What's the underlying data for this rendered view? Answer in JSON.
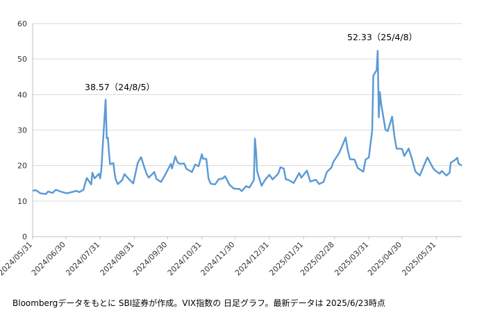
{
  "chart_data": {
    "type": "line",
    "annotations": [
      "38.57（24/8/5）",
      "52.33（25/4/8）"
    ],
    "caption": "Bloombergデータをもとに SBI証券が作成。VIX指数の 日足グラフ。最新データは 2025/6/23時点",
    "xlim": [
      "2024/05/31",
      "2025/06/23"
    ],
    "xticks": [
      "2024/05/31",
      "2024/06/30",
      "2024/07/31",
      "2024/08/31",
      "2024/09/30",
      "2024/10/31",
      "2024/11/30",
      "2024/12/31",
      "2025/01/31",
      "2025/02/28",
      "2025/03/31",
      "2025/04/30",
      "2025/05/31"
    ],
    "ylim": [
      0,
      60
    ],
    "yticks": [
      0,
      10,
      20,
      30,
      40,
      50,
      60
    ],
    "grid": true,
    "x": [
      "2024/05/31",
      "2024/06/03",
      "2024/06/07",
      "2024/06/12",
      "2024/06/14",
      "2024/06/18",
      "2024/06/21",
      "2024/06/26",
      "2024/07/01",
      "2024/07/05",
      "2024/07/10",
      "2024/07/12",
      "2024/07/16",
      "2024/07/17",
      "2024/07/19",
      "2024/07/23",
      "2024/07/24",
      "2024/07/26",
      "2024/07/30",
      "2024/07/31",
      "2024/08/01",
      "2024/08/02",
      "2024/08/05",
      "2024/08/06",
      "2024/08/07",
      "2024/08/08",
      "2024/08/09",
      "2024/08/12",
      "2024/08/13",
      "2024/08/14",
      "2024/08/16",
      "2024/08/20",
      "2024/08/22",
      "2024/08/26",
      "2024/08/30",
      "2024/09/03",
      "2024/09/04",
      "2024/09/06",
      "2024/09/09",
      "2024/09/11",
      "2024/09/13",
      "2024/09/18",
      "2024/09/20",
      "2024/09/24",
      "2024/09/27",
      "2024/10/01",
      "2024/10/03",
      "2024/10/04",
      "2024/10/07",
      "2024/10/09",
      "2024/10/11",
      "2024/10/15",
      "2024/10/17",
      "2024/10/22",
      "2024/10/25",
      "2024/10/28",
      "2024/10/31",
      "2024/11/01",
      "2024/11/04",
      "2024/11/06",
      "2024/11/08",
      "2024/11/12",
      "2024/11/15",
      "2024/11/19",
      "2024/11/21",
      "2024/11/25",
      "2024/11/29",
      "2024/12/04",
      "2024/12/06",
      "2024/12/10",
      "2024/12/13",
      "2024/12/17",
      "2024/12/18",
      "2024/12/19",
      "2024/12/20",
      "2024/12/24",
      "2024/12/27",
      "2024/12/31",
      "2025/01/03",
      "2025/01/08",
      "2025/01/10",
      "2025/01/13",
      "2025/01/15",
      "2025/01/17",
      "2025/01/22",
      "2025/01/27",
      "2025/01/29",
      "2025/02/03",
      "2025/02/06",
      "2025/02/11",
      "2025/02/14",
      "2025/02/18",
      "2025/02/21",
      "2025/02/25",
      "2025/02/27",
      "2025/03/04",
      "2025/03/06",
      "2025/03/10",
      "2025/03/12",
      "2025/03/14",
      "2025/03/18",
      "2025/03/21",
      "2025/03/26",
      "2025/03/28",
      "2025/03/31",
      "2025/04/03",
      "2025/04/04",
      "2025/04/07",
      "2025/04/08",
      "2025/04/09",
      "2025/04/10",
      "2025/04/11",
      "2025/04/15",
      "2025/04/17",
      "2025/04/21",
      "2025/04/23",
      "2025/04/25",
      "2025/04/30",
      "2025/05/02",
      "2025/05/06",
      "2025/05/09",
      "2025/05/12",
      "2025/05/16",
      "2025/05/21",
      "2025/05/23",
      "2025/05/28",
      "2025/05/30",
      "2025/06/03",
      "2025/06/05",
      "2025/06/09",
      "2025/06/12",
      "2025/06/13",
      "2025/06/17",
      "2025/06/19",
      "2025/06/20",
      "2025/06/23"
    ],
    "series": [
      {
        "name": "VIX",
        "color": "#5b9bd5",
        "values": [
          12.9,
          13.1,
          12.2,
          12.0,
          12.7,
          12.3,
          13.2,
          12.6,
          12.2,
          12.5,
          12.9,
          12.5,
          13.2,
          14.5,
          16.5,
          14.7,
          18.0,
          16.4,
          17.7,
          16.4,
          18.6,
          23.4,
          38.57,
          27.7,
          27.9,
          23.8,
          20.4,
          20.7,
          18.1,
          16.2,
          14.8,
          15.9,
          17.6,
          16.2,
          15.0,
          20.7,
          21.3,
          22.4,
          19.5,
          17.7,
          16.6,
          18.2,
          16.2,
          15.4,
          16.9,
          19.3,
          20.5,
          19.2,
          22.6,
          20.9,
          20.5,
          20.6,
          19.1,
          18.2,
          20.3,
          19.8,
          23.2,
          21.9,
          21.9,
          16.3,
          14.9,
          14.7,
          16.1,
          16.4,
          17.0,
          14.6,
          13.5,
          13.4,
          12.8,
          14.2,
          13.8,
          15.9,
          27.6,
          24.1,
          18.4,
          14.3,
          15.9,
          17.4,
          16.1,
          17.7,
          19.5,
          19.2,
          16.1,
          16.0,
          15.1,
          17.9,
          16.6,
          18.6,
          15.5,
          16.0,
          14.8,
          15.4,
          18.2,
          19.4,
          21.1,
          23.5,
          24.9,
          27.9,
          24.2,
          21.8,
          21.7,
          19.3,
          18.3,
          21.7,
          22.3,
          30.0,
          45.3,
          46.9,
          52.33,
          33.6,
          40.7,
          37.6,
          30.1,
          29.7,
          33.8,
          28.5,
          24.8,
          24.7,
          22.7,
          24.8,
          21.9,
          18.4,
          17.2,
          20.9,
          22.3,
          19.3,
          18.6,
          17.7,
          18.5,
          17.2,
          18.0,
          20.8,
          21.6,
          22.2,
          20.6,
          20.0
        ]
      }
    ]
  }
}
